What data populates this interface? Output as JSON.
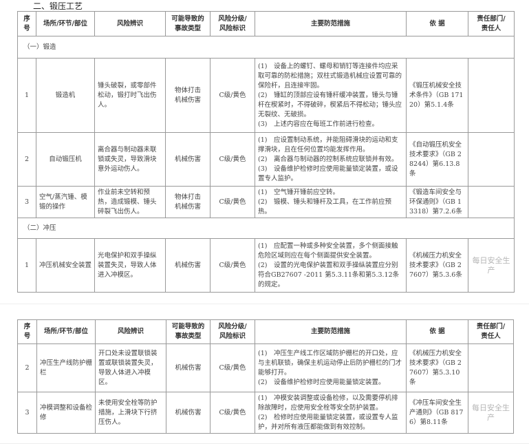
{
  "section_title": "二、锻压工艺",
  "headers": [
    "序号",
    "场所/环节/部位",
    "风险辨识",
    "可能导致的事故类型",
    "风险分级/风险标识",
    "主要防范措施",
    "依 据",
    "责任部门/责任人"
  ],
  "header_lines": {
    "seq": [
      "序",
      "号"
    ],
    "type": [
      "可能导致的",
      "事故类型"
    ],
    "level": [
      "风险分级/",
      "风险标识"
    ],
    "dept": [
      "责任部门/",
      "责任人"
    ]
  },
  "groups": [
    {
      "label": "（一）锻造",
      "rows": [
        {
          "no": "1",
          "place": "锻造机",
          "risk": "锤头破裂，或零部件松动，锻打时飞出伤人。",
          "type": "物体打击 机械伤害",
          "level": "C级/黄色",
          "measures": [
            "(1)　设备上的螺钉、螺母和销钉等连接件均应采取可靠的防松措施；双柱式锻造机械应设置可靠的保险杆，且连接牢固。",
            "(2)　锤缸的顶部应设有锤杆缓冲装置，锤头与锤杆在楔紧时，不得破碎，楔紧后不得松动；锤头应无裂纹、无破损。",
            "(3)　上述内容应在每班工作前进行检查。"
          ],
          "basis": "《锻压机械安全技术条件》（GB 17120）第5.1.4条",
          "dept": ""
        },
        {
          "no": "2",
          "place": "自动锻压机",
          "risk": "离合器与制动器未联锁或失灵，导致滑块意外运动伤人。",
          "type": "机械伤害",
          "level": "C级/黄色",
          "measures": [
            "(1)　应设置制动系统，并能阻碍滑块的运动和支撑滑块，且在任何位置均能发挥作用。",
            "(2)　离合器与制动器的控制系统应联锁并有效。",
            "(3)　设备维护检修时应使用能量锁定装置，或设置专人监护。"
          ],
          "basis": "《自动锻压机安全技术要求》（GB 28244）第6.13.8条",
          "dept": ""
        },
        {
          "no": "3",
          "place": "空气/蒸汽锤、模锻的操作",
          "risk": "作业前未空转和预热，造成锻模、锤头碎裂飞出伤人。",
          "type": "物体打击 机械伤害",
          "level": "C级/黄色",
          "measures": [
            "(1)　空气锤开锤前应空转。",
            "(2)　锻模、锤头和锤杆及工具，在工作前应预热。"
          ],
          "basis": "《锻造车间安全与环保通则》（GB 13318）第7.2.6条",
          "dept": ""
        }
      ]
    },
    {
      "label": "（二）冲压",
      "rows": [
        {
          "no": "1",
          "place": "冲压机械安全装置",
          "risk": "光电保护和双手操纵装置失灵，导致人体进入冲模区。",
          "type": "机械伤害",
          "level": "C级/黄色",
          "measures": [
            "(1)　应配置一种或多种安全装置，多个侧面接触危险区域则应在每个侧面提供安全装置。",
            "(2)　设置的光电保护装置和双手操纵装置应分别符合GB27607 -2011 第5.3.11条和第5.3.12条的规定。"
          ],
          "basis": "《机械压力机安全技术要求》（GB 27607）第5.3.6条",
          "dept": ""
        }
      ]
    }
  ],
  "continued_rows": [
    {
      "no": "2",
      "place": "冲压生产线防护栅栏",
      "risk": "开口处未设置联锁装置或联锁装置失灵，导致人体进入冲模区。",
      "type": "机械伤害",
      "level": "C级/黄色",
      "measures": [
        "(1)　冲压生产线工作区域防护栅栏的开口处，应与主机联锁，确保主机运动停止后防护栅栏的门才能够打开。",
        "(2)　设备维护检修时应使用能量锁定装置。"
      ],
      "basis": "《机械压力机安全技术要求》（GB 27607）第5.3.10条",
      "dept": ""
    },
    {
      "no": "3",
      "place": "冲模调整和设备检修",
      "risk": "未使用安全栓等防护措施，上滑块下行挤压伤人。",
      "type": "机械伤害",
      "level": "C级/黄色",
      "measures": [
        "(1)　冲模安装调整或设备检修，以及需要停机排除故障时，应使用安全栓等安全防护装置。",
        "(2)　检修时应使用能量锁定装置，或设置专人监护，并对所有液压都能做到有效控制。"
      ],
      "basis": "《冲压车间安全生产通则》（GB 8176）第8.11条",
      "dept": ""
    }
  ],
  "watermark": "每日安全生产"
}
